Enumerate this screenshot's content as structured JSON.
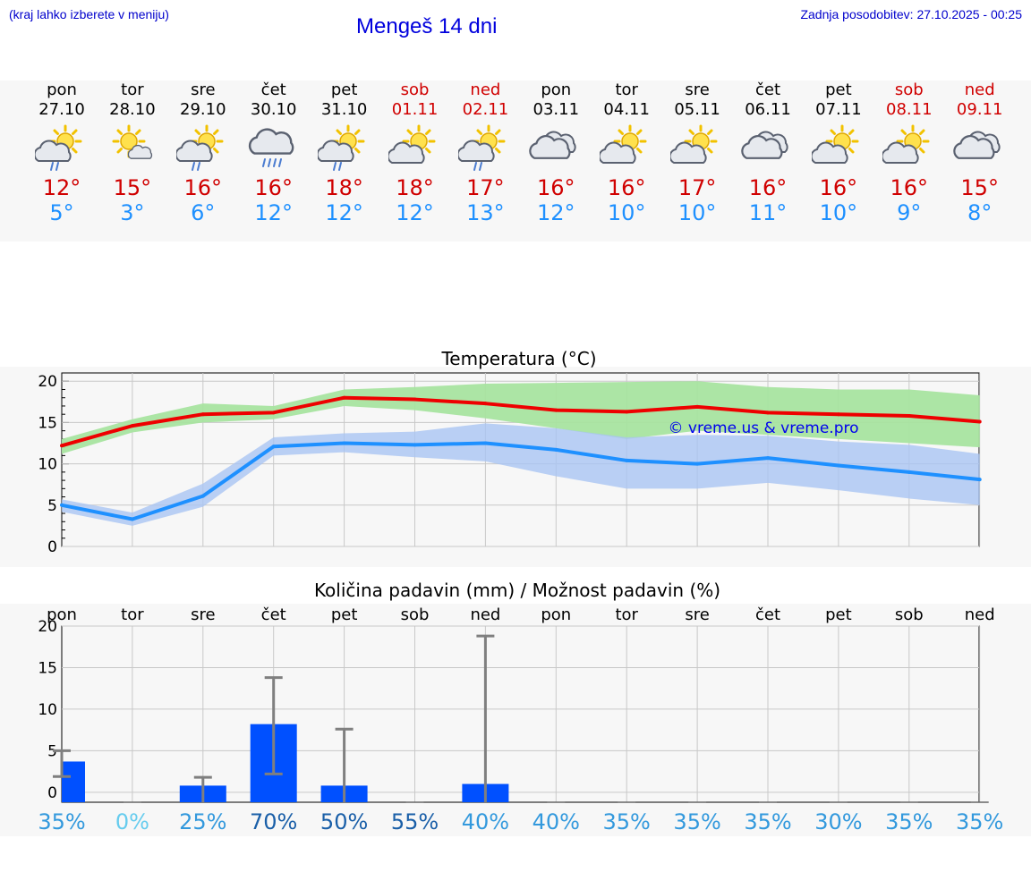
{
  "header": {
    "hint": "(kraj lahko izberete v meniju)",
    "title": "Mengeš 14 dni",
    "updated": "Zadnja posodobitev: 27.10.2025 - 00:25"
  },
  "forecast": [
    {
      "day": "pon",
      "date": "27.10",
      "weekend": false,
      "icon": "sun-cloud-rain-icon",
      "tmax": "12°",
      "tmin": "5°"
    },
    {
      "day": "tor",
      "date": "28.10",
      "weekend": false,
      "icon": "sun-small-cloud-icon",
      "tmax": "15°",
      "tmin": "3°"
    },
    {
      "day": "sre",
      "date": "29.10",
      "weekend": false,
      "icon": "sun-cloud-rain-icon",
      "tmax": "16°",
      "tmin": "6°"
    },
    {
      "day": "čet",
      "date": "30.10",
      "weekend": false,
      "icon": "cloud-rain-icon",
      "tmax": "16°",
      "tmin": "12°"
    },
    {
      "day": "pet",
      "date": "31.10",
      "weekend": false,
      "icon": "sun-cloud-rain-icon",
      "tmax": "18°",
      "tmin": "12°"
    },
    {
      "day": "sob",
      "date": "01.11",
      "weekend": true,
      "icon": "sun-cloud-icon",
      "tmax": "18°",
      "tmin": "12°"
    },
    {
      "day": "ned",
      "date": "02.11",
      "weekend": true,
      "icon": "sun-cloud-rain-icon",
      "tmax": "17°",
      "tmin": "13°"
    },
    {
      "day": "pon",
      "date": "03.11",
      "weekend": false,
      "icon": "cloudy-icon",
      "tmax": "16°",
      "tmin": "12°"
    },
    {
      "day": "tor",
      "date": "04.11",
      "weekend": false,
      "icon": "sun-cloud-icon",
      "tmax": "16°",
      "tmin": "10°"
    },
    {
      "day": "sre",
      "date": "05.11",
      "weekend": false,
      "icon": "sun-cloud-icon",
      "tmax": "17°",
      "tmin": "10°"
    },
    {
      "day": "čet",
      "date": "06.11",
      "weekend": false,
      "icon": "cloudy-icon",
      "tmax": "16°",
      "tmin": "11°"
    },
    {
      "day": "pet",
      "date": "07.11",
      "weekend": false,
      "icon": "sun-cloud-icon",
      "tmax": "16°",
      "tmin": "10°"
    },
    {
      "day": "sob",
      "date": "08.11",
      "weekend": true,
      "icon": "sun-cloud-icon",
      "tmax": "16°",
      "tmin": "9°"
    },
    {
      "day": "ned",
      "date": "09.11",
      "weekend": true,
      "icon": "cloudy-icon",
      "tmax": "15°",
      "tmin": "8°"
    }
  ],
  "colors": {
    "tmax": "#ee0000",
    "tmin": "#1e90ff",
    "tmax_band": "#a8e4a0",
    "tmin_band": "#a9c4f2",
    "bar": "#0050ff",
    "errbar": "#7f7f7f",
    "weekend": "#d00000"
  },
  "chart_data": [
    {
      "type": "line",
      "title": "Temperatura (°C)",
      "watermark": "© vreme.us & vreme.pro",
      "ylim": [
        0,
        21
      ],
      "yticks": [
        0,
        5,
        10,
        15,
        20
      ],
      "x": [
        0,
        1,
        2,
        3,
        4,
        5,
        6,
        7,
        8,
        9,
        10,
        11,
        12,
        13
      ],
      "series": [
        {
          "name": "tmax",
          "values": [
            12.2,
            14.6,
            16.0,
            16.2,
            18.0,
            17.8,
            17.3,
            16.5,
            16.3,
            16.9,
            16.2,
            16.0,
            15.8,
            15.1
          ],
          "band_low": [
            11.2,
            13.8,
            15.0,
            15.4,
            17.0,
            16.5,
            15.5,
            14.3,
            13.0,
            14.0,
            13.5,
            13.0,
            12.5,
            12.0
          ],
          "band_high": [
            13.0,
            15.4,
            17.3,
            17.0,
            19.0,
            19.3,
            19.7,
            19.8,
            19.9,
            20.0,
            19.3,
            19.0,
            19.0,
            18.3
          ]
        },
        {
          "name": "tmin",
          "values": [
            5.0,
            3.3,
            6.1,
            12.1,
            12.5,
            12.3,
            12.5,
            11.7,
            10.4,
            10.0,
            10.7,
            9.8,
            9.0,
            8.1
          ],
          "band_low": [
            4.2,
            2.5,
            4.8,
            11.0,
            11.4,
            10.8,
            10.3,
            8.5,
            7.0,
            7.0,
            7.7,
            6.8,
            5.8,
            5.0
          ],
          "band_high": [
            5.7,
            4.1,
            7.6,
            13.2,
            13.7,
            13.9,
            14.9,
            14.3,
            13.2,
            13.5,
            13.4,
            12.7,
            12.3,
            11.2
          ]
        }
      ]
    },
    {
      "type": "bar",
      "title": "Količina padavin (mm) / Možnost padavin (%)",
      "categories": [
        "pon",
        "tor",
        "sre",
        "čet",
        "pet",
        "sob",
        "ned",
        "pon",
        "tor",
        "sre",
        "čet",
        "pet",
        "sob",
        "ned"
      ],
      "ylim": [
        -1.2,
        20
      ],
      "yticks": [
        0,
        5,
        10,
        15,
        20
      ],
      "values": [
        3.7,
        0,
        0.8,
        8.2,
        0.8,
        0,
        1.0,
        0,
        0,
        0,
        0,
        0,
        0,
        0
      ],
      "err_low": [
        1.9,
        0,
        0,
        2.2,
        0,
        0,
        0,
        0,
        0,
        0,
        0,
        0,
        0,
        0
      ],
      "err_high": [
        5.0,
        0,
        1.8,
        13.8,
        7.6,
        0,
        18.8,
        0,
        0,
        0,
        0,
        0,
        0,
        0
      ],
      "probability": [
        "35%",
        "0%",
        "25%",
        "70%",
        "50%",
        "55%",
        "40%",
        "40%",
        "35%",
        "35%",
        "35%",
        "30%",
        "35%",
        "35%"
      ],
      "probability_colors": [
        "#3399dd",
        "#66ccee",
        "#3399dd",
        "#1a5fa8",
        "#1a5fa8",
        "#1a5fa8",
        "#3399dd",
        "#3399dd",
        "#3399dd",
        "#3399dd",
        "#3399dd",
        "#3399dd",
        "#3399dd",
        "#3399dd"
      ]
    }
  ]
}
